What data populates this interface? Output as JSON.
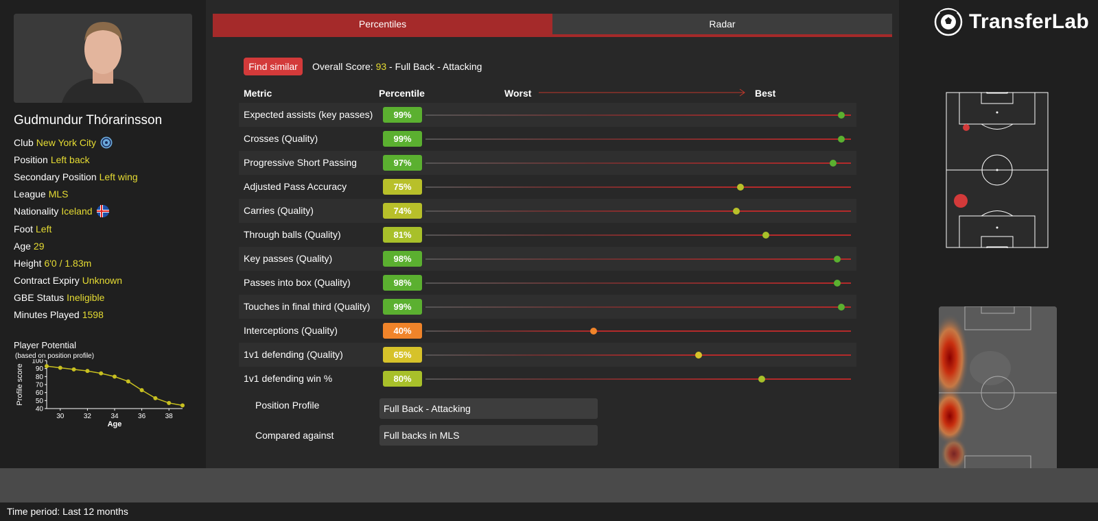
{
  "tabs": [
    {
      "label": "Percentiles",
      "active": true
    },
    {
      "label": "Radar",
      "active": false
    }
  ],
  "brand": {
    "name": "TransferLab",
    "icon": "soccer-ball-icon"
  },
  "player": {
    "name": "Gudmundur Thórarinsson",
    "info": [
      {
        "label": "Club",
        "value": "New York City",
        "badge": "club-crest-icon"
      },
      {
        "label": "Position",
        "value": "Left back"
      },
      {
        "label": "Secondary Position",
        "value": "Left wing"
      },
      {
        "label": "League",
        "value": "MLS"
      },
      {
        "label": "Nationality",
        "value": "Iceland",
        "badge": "iceland-flag-icon"
      },
      {
        "label": "Foot",
        "value": "Left"
      },
      {
        "label": "Age",
        "value": "29"
      },
      {
        "label": "Height",
        "value": "6'0 / 1.83m"
      },
      {
        "label": "Contract Expiry",
        "value": "Unknown"
      },
      {
        "label": "GBE Status",
        "value": "Ineligible"
      },
      {
        "label": "Minutes Played",
        "value": "1598"
      }
    ]
  },
  "potential": {
    "title": "Player Potential",
    "subtitle": "(based on position profile)"
  },
  "chart_data": {
    "type": "line",
    "title": "Player Potential",
    "subtitle": "(based on position profile)",
    "xlabel": "Age",
    "ylabel": "Profile score",
    "xlim": [
      29,
      39
    ],
    "ylim": [
      40,
      100
    ],
    "xticks": [
      30,
      32,
      34,
      36,
      38
    ],
    "yticks": [
      40,
      50,
      60,
      70,
      80,
      90,
      100
    ],
    "x": [
      29,
      30,
      31,
      32,
      33,
      34,
      35,
      36,
      37,
      38,
      39
    ],
    "y": [
      93,
      91,
      89,
      87,
      84,
      80,
      74,
      63,
      53,
      47,
      44
    ],
    "color": "#c8c020"
  },
  "find_similar_label": "Find similar",
  "overall": {
    "prefix": "Overall Score: ",
    "score": "93",
    "suffix": " - Full Back - Attacking"
  },
  "headers": {
    "metric": "Metric",
    "percentile": "Percentile",
    "worst": "Worst",
    "best": "Best"
  },
  "metrics": [
    {
      "name": "Expected assists (key passes)",
      "percentile": 99,
      "label": "99%",
      "color": "#5bb030"
    },
    {
      "name": "Crosses (Quality)",
      "percentile": 99,
      "label": "99%",
      "color": "#5bb030"
    },
    {
      "name": "Progressive Short Passing",
      "percentile": 97,
      "label": "97%",
      "color": "#5bb030"
    },
    {
      "name": "Adjusted Pass Accuracy",
      "percentile": 75,
      "label": "75%",
      "color": "#b8c02a"
    },
    {
      "name": "Carries (Quality)",
      "percentile": 74,
      "label": "74%",
      "color": "#b8c02a"
    },
    {
      "name": "Through balls (Quality)",
      "percentile": 81,
      "label": "81%",
      "color": "#a8c02a"
    },
    {
      "name": "Key passes (Quality)",
      "percentile": 98,
      "label": "98%",
      "color": "#5bb030"
    },
    {
      "name": "Passes into box (Quality)",
      "percentile": 98,
      "label": "98%",
      "color": "#5bb030"
    },
    {
      "name": "Touches in final third (Quality)",
      "percentile": 99,
      "label": "99%",
      "color": "#5bb030"
    },
    {
      "name": "Interceptions (Quality)",
      "percentile": 40,
      "label": "40%",
      "color": "#f0842a"
    },
    {
      "name": "1v1 defending (Quality)",
      "percentile": 65,
      "label": "65%",
      "color": "#d6c22a"
    },
    {
      "name": "1v1 defending win %",
      "percentile": 80,
      "label": "80%",
      "color": "#a8c02a"
    }
  ],
  "profile": {
    "position_label": "Position Profile",
    "position_value": "Full Back - Attacking",
    "compared_label": "Compared against",
    "compared_value": "Full backs in MLS"
  },
  "footer": {
    "time_period": "Time period: Last 12 months"
  }
}
